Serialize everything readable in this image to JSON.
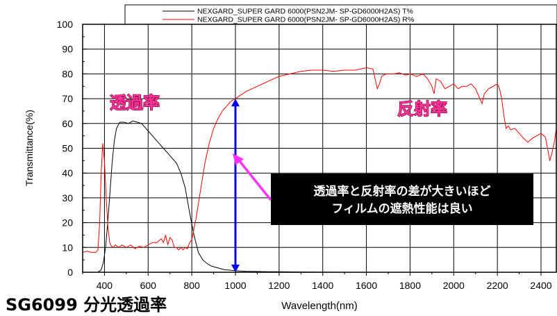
{
  "chart_data": {
    "type": "line",
    "title": "SG6099 分光透過率",
    "xlabel": "Wavelength(nm)",
    "ylabel": "Transmittance(%)",
    "xlim": [
      300,
      2470
    ],
    "ylim": [
      0,
      100
    ],
    "x_ticks": [
      400,
      600,
      800,
      1000,
      1200,
      1400,
      1600,
      1800,
      2000,
      2200,
      2400
    ],
    "y_ticks": [
      0,
      10,
      20,
      30,
      40,
      50,
      60,
      70,
      80,
      90,
      100
    ],
    "grid": true,
    "legend_position": "top",
    "series": [
      {
        "name": "NEXGARD_SUPER GARD 6000(PSN2JM- SP-GD6000H2AS) T%",
        "color": "#000000",
        "x": [
          300,
          370,
          385,
          395,
          405,
          415,
          425,
          435,
          445,
          455,
          470,
          490,
          510,
          530,
          550,
          570,
          590,
          610,
          630,
          650,
          670,
          690,
          710,
          730,
          750,
          770,
          790,
          810,
          830,
          850,
          870,
          890,
          910,
          930,
          950,
          980,
          1000,
          1050,
          1100,
          1150,
          1200,
          1300,
          1500,
          2470
        ],
        "values": [
          0,
          0,
          1,
          4,
          10,
          20,
          32,
          44,
          53,
          58,
          60.5,
          60.5,
          60,
          61,
          60.5,
          60,
          58,
          56,
          54,
          52,
          50,
          48,
          46,
          44,
          40,
          34,
          24,
          15,
          8,
          5,
          3.5,
          2.5,
          2,
          1.5,
          1,
          0.8,
          0.6,
          0.4,
          0.3,
          0.2,
          0.2,
          0.1,
          0,
          0
        ]
      },
      {
        "name": "NEXGARD_SUPER GARD 6000(PSN2JM- SP-GD6000H2AS) R%",
        "color": "#ff0000",
        "x": [
          300,
          320,
          340,
          360,
          370,
          378,
          385,
          392,
          400,
          408,
          416,
          424,
          432,
          440,
          450,
          465,
          480,
          500,
          520,
          540,
          560,
          580,
          600,
          620,
          640,
          660,
          670,
          680,
          690,
          700,
          710,
          720,
          730,
          740,
          750,
          760,
          770,
          780,
          790,
          800,
          820,
          840,
          860,
          880,
          900,
          920,
          940,
          960,
          980,
          1000,
          1050,
          1100,
          1150,
          1200,
          1250,
          1300,
          1350,
          1400,
          1450,
          1500,
          1550,
          1600,
          1630,
          1640,
          1650,
          1660,
          1670,
          1690,
          1710,
          1730,
          1750,
          1780,
          1800,
          1830,
          1860,
          1880,
          1900,
          1910,
          1920,
          1940,
          1960,
          1980,
          2000,
          2020,
          2040,
          2060,
          2080,
          2100,
          2110,
          2120,
          2130,
          2140,
          2160,
          2180,
          2200,
          2210,
          2220,
          2230,
          2240,
          2250,
          2260,
          2280,
          2300,
          2320,
          2340,
          2360,
          2380,
          2400,
          2420,
          2430,
          2440,
          2450,
          2460,
          2470
        ],
        "values": [
          8,
          8.5,
          8,
          8,
          9,
          20,
          40,
          52,
          45,
          30,
          18,
          12,
          10.5,
          10,
          11,
          10,
          11,
          10,
          11,
          9.5,
          10.5,
          10,
          11,
          12,
          12,
          13.5,
          12,
          15,
          11,
          14,
          13,
          10,
          10,
          9,
          10,
          9,
          10,
          9.5,
          12,
          13,
          22,
          33,
          44,
          52,
          58,
          62,
          65,
          67,
          69,
          70,
          73,
          75,
          77,
          79,
          80,
          81,
          81.5,
          81.5,
          81,
          81.5,
          81.5,
          82.5,
          82,
          78,
          74,
          76,
          79,
          80,
          80,
          80,
          80.5,
          79.5,
          80,
          79,
          80,
          78,
          75,
          72,
          78,
          77,
          74,
          75,
          76,
          74,
          75,
          75,
          76,
          74,
          72,
          70,
          68,
          72,
          74,
          75,
          76,
          74,
          70,
          63,
          58,
          59,
          57.5,
          58,
          56,
          54,
          52.5,
          54,
          55,
          56,
          54.5,
          50,
          45,
          48,
          52,
          58
        ]
      }
    ],
    "annotations": {
      "transmittance_label": "透過率",
      "reflectance_label": "反射率",
      "note_line1": "透過率と反射率の差が大きいほど",
      "note_line2": "フィルムの遮熱性能は良い",
      "arrow_at_x": 1000,
      "arrow_from": 0,
      "arrow_to": 70
    }
  },
  "colors": {
    "transmittance": "#000000",
    "reflectance": "#ff0000",
    "label_pink": "#ff3399",
    "double_arrow": "#0000ee",
    "pointer_arrow": "#ff33ff",
    "note_box": "#000000",
    "grid": "#000000"
  }
}
